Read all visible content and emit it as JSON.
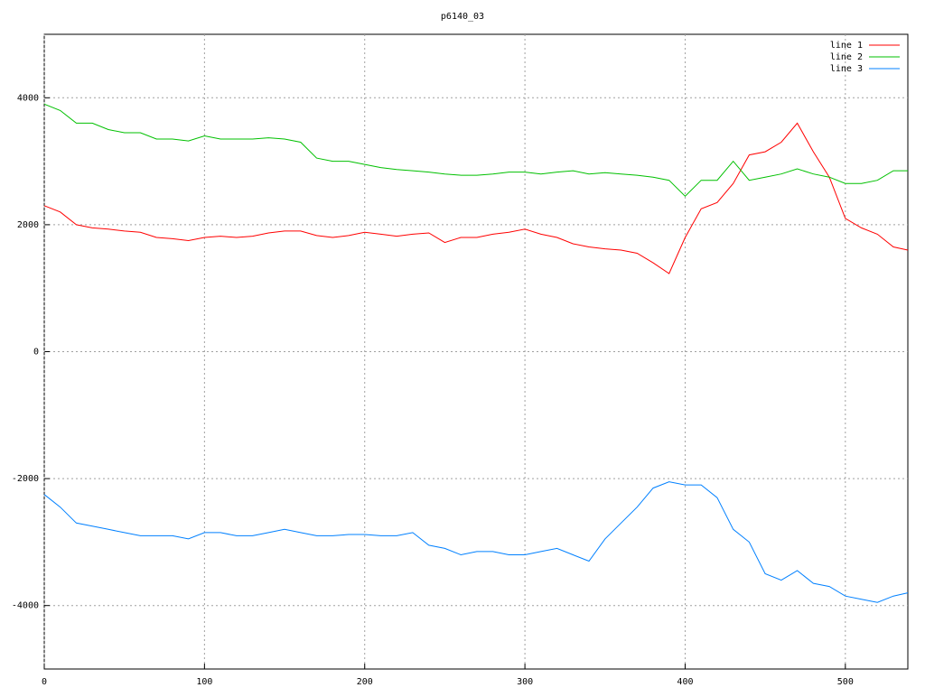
{
  "chart_data": {
    "type": "line",
    "title": "p6140_03",
    "x": [
      0,
      10,
      20,
      30,
      40,
      50,
      60,
      70,
      80,
      90,
      100,
      110,
      120,
      130,
      140,
      150,
      160,
      170,
      180,
      190,
      200,
      210,
      220,
      230,
      240,
      250,
      260,
      270,
      280,
      290,
      300,
      310,
      320,
      330,
      340,
      350,
      360,
      370,
      380,
      390,
      400,
      410,
      420,
      430,
      440,
      450,
      460,
      470,
      480,
      490,
      500,
      510,
      520,
      530,
      539
    ],
    "series": [
      {
        "name": "line 1",
        "color": "#ff0000",
        "values": [
          2300,
          2200,
          2000,
          1950,
          1930,
          1900,
          1880,
          1800,
          1780,
          1750,
          1800,
          1820,
          1800,
          1820,
          1870,
          1900,
          1900,
          1830,
          1800,
          1830,
          1880,
          1850,
          1820,
          1850,
          1870,
          1720,
          1800,
          1800,
          1850,
          1880,
          1930,
          1850,
          1800,
          1700,
          1650,
          1620,
          1600,
          1550,
          1400,
          1230,
          1800,
          2250,
          2350,
          2650,
          3100,
          3150,
          3300,
          3600,
          3150,
          2750,
          2100,
          1950,
          1850,
          1650,
          1600
        ]
      },
      {
        "name": "line 2",
        "color": "#00c000",
        "values": [
          3900,
          3800,
          3600,
          3600,
          3500,
          3450,
          3450,
          3350,
          3350,
          3320,
          3400,
          3350,
          3350,
          3350,
          3370,
          3350,
          3300,
          3050,
          3000,
          3000,
          2950,
          2900,
          2870,
          2850,
          2830,
          2800,
          2780,
          2780,
          2800,
          2830,
          2830,
          2800,
          2830,
          2850,
          2800,
          2820,
          2800,
          2780,
          2750,
          2700,
          2450,
          2700,
          2700,
          3000,
          2700,
          2750,
          2800,
          2880,
          2800,
          2750,
          2650,
          2650,
          2700,
          2850,
          2850
        ]
      },
      {
        "name": "line 3",
        "color": "#0080ff",
        "values": [
          -2250,
          -2450,
          -2700,
          -2750,
          -2800,
          -2850,
          -2900,
          -2900,
          -2900,
          -2950,
          -2850,
          -2850,
          -2900,
          -2900,
          -2850,
          -2800,
          -2850,
          -2900,
          -2900,
          -2880,
          -2880,
          -2900,
          -2900,
          -2850,
          -3050,
          -3100,
          -3200,
          -3150,
          -3150,
          -3200,
          -3200,
          -3150,
          -3100,
          -3200,
          -3300,
          -2950,
          -2700,
          -2450,
          -2150,
          -2050,
          -2100,
          -2100,
          -2300,
          -2800,
          -3000,
          -3500,
          -3600,
          -3450,
          -3650,
          -3700,
          -3850,
          -3900,
          -3950,
          -3850,
          -3800
        ]
      }
    ],
    "xlim": [
      0,
      539
    ],
    "ylim": [
      -5000,
      5000
    ],
    "xticks": [
      0,
      100,
      200,
      300,
      400,
      500
    ],
    "yticks": [
      -4000,
      -2000,
      0,
      2000,
      4000
    ],
    "grid": true
  }
}
